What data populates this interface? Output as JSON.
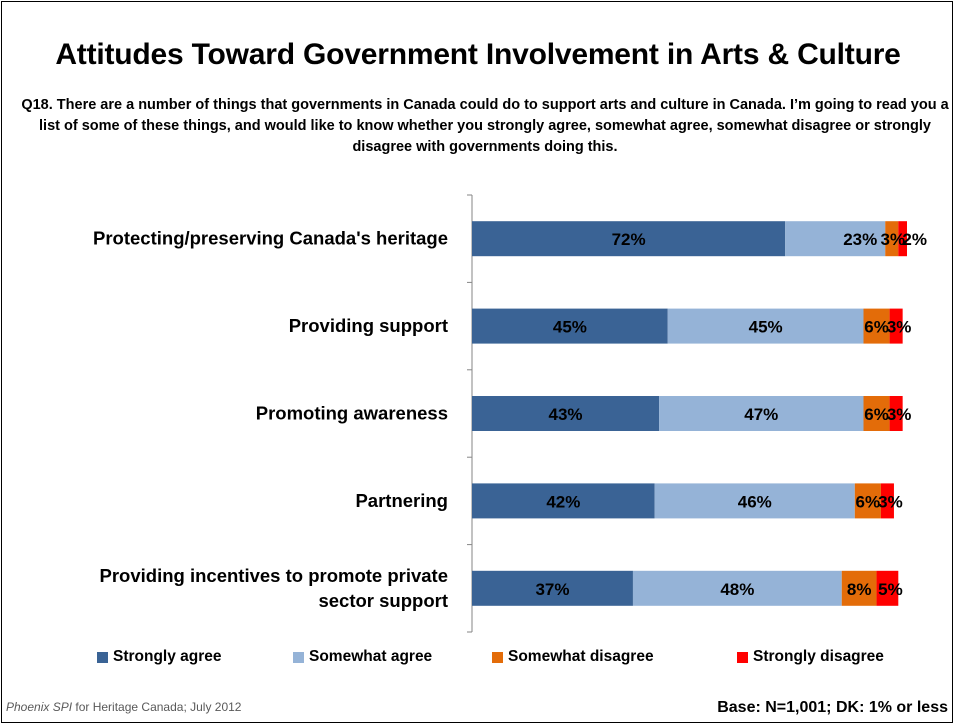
{
  "title": "Attitudes Toward Government Involvement in Arts & Culture",
  "question": "Q18. There are a number of things that governments in Canada could do to support arts and culture in Canada. I’m going to read you a list of some of these things, and would like to know whether you strongly agree, somewhat agree, somewhat disagree or strongly disagree with governments doing this.",
  "footer": {
    "source_brand": "Phoenix SPI",
    "source_rest": " for Heritage Canada; July 2012",
    "base": "Base: N=1,001; DK: 1% or less"
  },
  "chart_data": {
    "type": "bar",
    "orientation": "horizontal",
    "stacked": true,
    "categories": [
      "Protecting/preserving Canada's heritage",
      "Providing support",
      "Promoting awareness",
      "Partnering",
      "Providing incentives to promote private sector support"
    ],
    "category_lines": [
      [
        "Protecting/preserving Canada's heritage"
      ],
      [
        "Providing support"
      ],
      [
        "Promoting awareness"
      ],
      [
        "Partnering"
      ],
      [
        "Providing incentives to promote private",
        "sector support"
      ]
    ],
    "series": [
      {
        "name": "Strongly agree",
        "color": "#3A6395",
        "values": [
          72,
          45,
          43,
          42,
          37
        ],
        "labels": [
          "72%",
          "45%",
          "43%",
          "42%",
          "37%"
        ]
      },
      {
        "name": "Somewhat agree",
        "color": "#95B3D7",
        "values": [
          23,
          45,
          47,
          46,
          48
        ],
        "labels": [
          "23%",
          "45%",
          "47%",
          "46%",
          "48%"
        ]
      },
      {
        "name": "Somewhat disagree",
        "color": "#E36C09",
        "values": [
          3,
          6,
          6,
          6,
          8
        ],
        "labels": [
          "3%",
          "6%",
          "6%",
          "6%",
          "8%"
        ]
      },
      {
        "name": "Strongly disagree",
        "color": "#FF0000",
        "values": [
          2,
          3,
          3,
          3,
          5
        ],
        "labels": [
          "2%",
          "3%",
          "3%",
          "3%",
          "5%"
        ]
      }
    ],
    "xlim": [
      0,
      100
    ],
    "grid": false,
    "legend_position": "bottom",
    "value_unit": "%"
  }
}
